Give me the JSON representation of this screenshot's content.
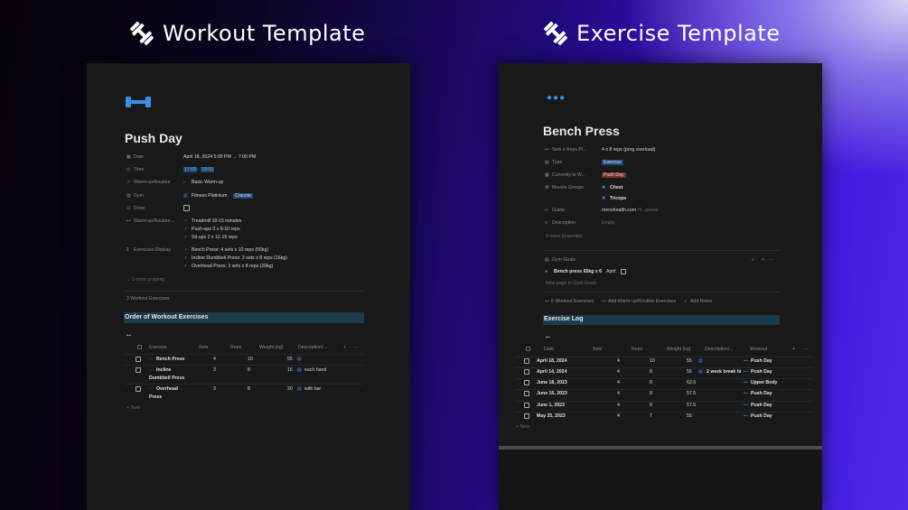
{
  "headings": {
    "left": "Workout Template",
    "right": "Exercise Template",
    "icon": "dumbbell-icon"
  },
  "colors": {
    "accent": "#3a8ee6",
    "section_bar": "#1c3b4b",
    "panel_bg": "#191919"
  },
  "workout": {
    "title": "Push Day",
    "properties": [
      {
        "label": "Date",
        "icon": "calendar-icon",
        "value": "April 18, 2024 5:00 PM → 7:00 PM"
      },
      {
        "label": "Time",
        "icon": "clock-icon",
        "value_start": "17:00",
        "value_sep": "-",
        "value_end": "19:00"
      },
      {
        "label": "Warm-up/Routine",
        "icon": "relation-icon",
        "value": "Basic Warm-up"
      },
      {
        "label": "Gym",
        "icon": "building-icon",
        "value": "Fitness Platinium",
        "tag": "Cracow"
      },
      {
        "label": "Done",
        "icon": "checkbox-icon",
        "checked": false
      },
      {
        "label": "Warm-up/Routine...",
        "icon": "dumbbell-icon",
        "items": [
          "Treadmill 10-15 minutes",
          "Push-ups 3 x 8-10 reps",
          "Sit-ups 2 x 12-15 reps"
        ]
      },
      {
        "label": "Exercises Display",
        "icon": "sigma-icon",
        "items": [
          "Bench Press: 4 sets x 10 reps (55kg)",
          "Incline Dumbbell Press: 3 sets x 8 reps (16kg)",
          "Overhead Press: 3 sets x 8 reps (20kg)"
        ]
      }
    ],
    "more": "1 more property",
    "backlinks": "3 Workout Exercises",
    "section": "Order of Workout Exercises",
    "table": {
      "columns": [
        "Exercise",
        "Sets",
        "Reps",
        "Weight (kg)",
        "Description/...",
        "+",
        "···"
      ],
      "rows": [
        {
          "exercise": "Bench Press",
          "exercise2": "",
          "sets": "4",
          "reps": "10",
          "weight": "55",
          "desc": ""
        },
        {
          "exercise": "Incline",
          "exercise2": "Dumbbell Press",
          "sets": "3",
          "reps": "8",
          "weight": "16",
          "desc": "each hand"
        },
        {
          "exercise": "Overhead",
          "exercise2": "Press",
          "sets": "3",
          "reps": "8",
          "weight": "20",
          "desc": "with bar"
        }
      ],
      "new": "+ New"
    }
  },
  "exercise": {
    "title": "Bench Press",
    "properties": [
      {
        "label": "Sets x Reps Pl...",
        "icon": "dumbbell-icon",
        "value": "4 x 8 reps (prog overload)"
      },
      {
        "label": "Type",
        "icon": "lock-icon",
        "tag": "Exercise",
        "tag_color": "#1f4a7e"
      },
      {
        "label": "Currently in W...",
        "icon": "calendar-icon",
        "tag": "Push Day",
        "tag_color": "#7a2e26"
      },
      {
        "label": "Muscle Groups",
        "icon": "muscle-icon",
        "items": [
          "Chest",
          "Triceps"
        ]
      },
      {
        "label": "Guide",
        "icon": "link-icon",
        "value": "menshealth.com",
        "value_muted": "/fi...press/"
      },
      {
        "label": "Description",
        "icon": "text-icon",
        "value_muted": "Empty"
      }
    ],
    "more": "4 more properties",
    "gym_goals": {
      "label": "Gym Goals",
      "item": "Bench press 65kg x 6",
      "month": "April",
      "new": "New page in Gym Goals"
    },
    "links": [
      "6 Workout Exercises",
      "Add Warm-up/Routine Exercises",
      "Add Notes"
    ],
    "section": "Exercise Log",
    "table": {
      "columns": [
        "Date",
        "Sets",
        "Reps",
        "Weight (kg)",
        "Description/...",
        "Workout",
        "+",
        "···"
      ],
      "rows": [
        {
          "date": "April 18, 2024",
          "sets": "4",
          "reps": "10",
          "weight": "55",
          "desc": "",
          "hasdesc": true,
          "workout": "Push Day"
        },
        {
          "date": "April 14, 2024",
          "sets": "4",
          "reps": "8",
          "weight": "55",
          "desc": "2 week break hi",
          "hasdesc": true,
          "workout": "Push Day"
        },
        {
          "date": "June 18, 2023",
          "sets": "4",
          "reps": "8",
          "weight": "62.5",
          "desc": "",
          "hasdesc": false,
          "workout": "Upper Body"
        },
        {
          "date": "June 16, 2023",
          "sets": "4",
          "reps": "8",
          "weight": "57.5",
          "desc": "",
          "hasdesc": false,
          "workout": "Push Day"
        },
        {
          "date": "June 1, 2023",
          "sets": "4",
          "reps": "8",
          "weight": "57.5",
          "desc": "",
          "hasdesc": false,
          "workout": "Push Day"
        },
        {
          "date": "May 25, 2023",
          "sets": "4",
          "reps": "7",
          "weight": "55",
          "desc": "",
          "hasdesc": false,
          "workout": "Push Day"
        }
      ],
      "new": "+ New"
    }
  }
}
